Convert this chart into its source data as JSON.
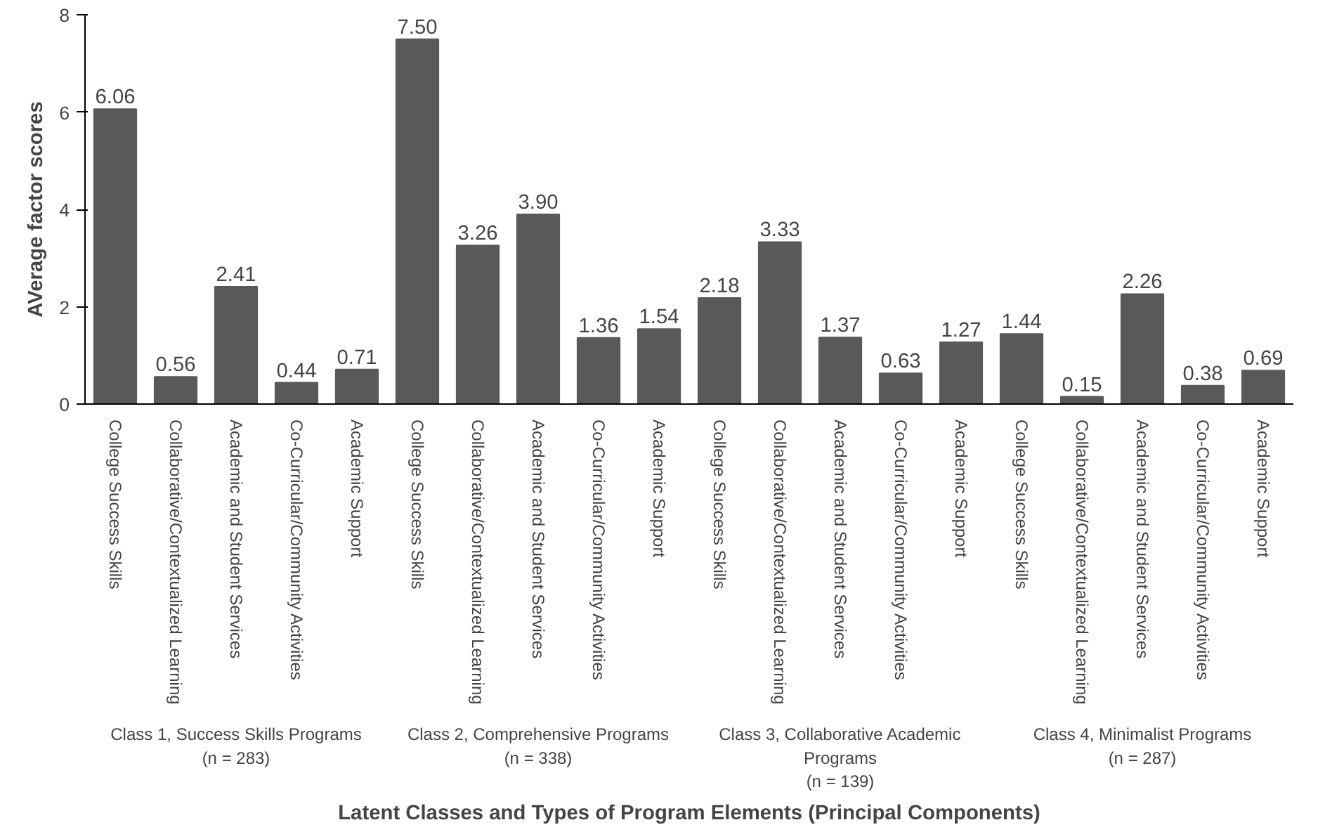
{
  "chart_data": {
    "type": "bar",
    "ylabel": "AVerage factor scores",
    "xlabel": "Latent Classes and Types of Program Elements (Principal Components)",
    "categories": [
      "College Success Skills",
      "Collaborative/Contextualized Learning",
      "Academic and Student Services",
      "Co-Curricular/Community Activities",
      "Academic Support",
      "College Success Skills",
      "Collaborative/Contextualized Learning",
      "Academic and Student Services",
      "Co-Curricular/Community Activities",
      "Academic Support",
      "College Success Skills",
      "Collaborative/Contextualized Learning",
      "Academic and Student Services",
      "Co-Curricular/Community Activities",
      "Academic Support",
      "College Success Skills",
      "Collaborative/Contextualized Learning",
      "Academic and Student Services",
      "Co-Curricular/Community Activities",
      "Academic Support"
    ],
    "values": [
      6.06,
      0.56,
      2.41,
      0.44,
      0.71,
      7.5,
      3.26,
      3.9,
      1.36,
      1.54,
      2.18,
      3.33,
      1.37,
      0.63,
      1.27,
      1.44,
      0.15,
      2.26,
      0.38,
      0.69
    ],
    "value_labels": [
      "6.06",
      "0.56",
      "2.41",
      "0.44",
      "0.71",
      "7.50",
      "3.26",
      "3.90",
      "1.36",
      "1.54",
      "2.18",
      "3.33",
      "1.37",
      "0.63",
      "1.27",
      "1.44",
      "0.15",
      "2.26",
      "0.38",
      "0.69"
    ],
    "color": "#595959",
    "ylim": [
      0,
      8
    ],
    "yticks": [
      0,
      2,
      4,
      6,
      8
    ],
    "grid": false,
    "annotations": [
      "Class 1, Success Skills Programs\n(n = 283)",
      "Class 2, Comprehensive Programs\n(n = 338)",
      "Class 3, Collaborative Academic\nPrograms\n(n = 139)",
      "Class 4, Minimalist Programs\n(n = 287)"
    ]
  }
}
